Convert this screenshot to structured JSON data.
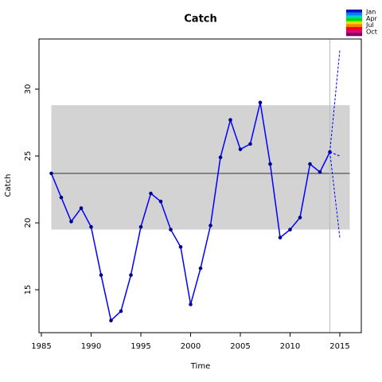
{
  "chart_data": {
    "type": "line",
    "title": "Catch",
    "x_label": "Time",
    "y_label": "Catch",
    "x": [
      1986,
      1987,
      1988,
      1989,
      1990,
      1991,
      1992,
      1993,
      1994,
      1995,
      1996,
      1997,
      1998,
      1999,
      2000,
      2001,
      2002,
      2003,
      2004,
      2005,
      2006,
      2007,
      2008,
      2009,
      2010,
      2011,
      2012,
      2013,
      2014
    ],
    "series": [
      {
        "color": "#0000ff",
        "values": [
          23.7,
          21.9,
          20.1,
          21.1,
          19.7,
          16.1,
          12.7,
          13.4,
          16.1,
          19.7,
          22.2,
          21.6,
          19.5,
          18.2,
          13.9,
          16.6,
          19.8,
          24.9,
          27.7,
          25.5,
          25.9,
          29.0,
          24.4,
          18.9,
          19.5,
          20.4,
          24.4,
          23.8,
          25.3
        ]
      }
    ],
    "forecasts": [
      {
        "color": "#0000ff",
        "x": [
          2014,
          2015
        ],
        "values": [
          25.3,
          32.9
        ]
      },
      {
        "color": "#0000ff",
        "x": [
          2014,
          2015
        ],
        "values": [
          25.3,
          25.0
        ]
      },
      {
        "color": "#0000ff",
        "x": [
          2014,
          2015
        ],
        "values": [
          25.3,
          18.9
        ]
      }
    ],
    "band": {
      "x": [
        1986,
        2016
      ],
      "y": [
        19.5,
        28.8
      ],
      "color": "#d3d3d3"
    },
    "mean": {
      "x": [
        1986,
        2016
      ],
      "y": 23.7,
      "color": "#555555"
    },
    "vline": 2014,
    "xlim": [
      1984.76,
      2017.16
    ],
    "ylim": [
      11.79,
      33.75
    ],
    "xticks": [
      1985,
      1990,
      1995,
      2000,
      2005,
      2010,
      2015
    ],
    "yticks": [
      15,
      20,
      25,
      30
    ],
    "legend": {
      "labels": [
        "Jan",
        "Apr",
        "Jul",
        "Oct"
      ],
      "colors": [
        "#1010c0",
        "#0080ff",
        "#00d0d0",
        "#00e000",
        "#e0e000",
        "#ff8000",
        "#ff0000",
        "#e00080",
        "#800060"
      ]
    }
  }
}
